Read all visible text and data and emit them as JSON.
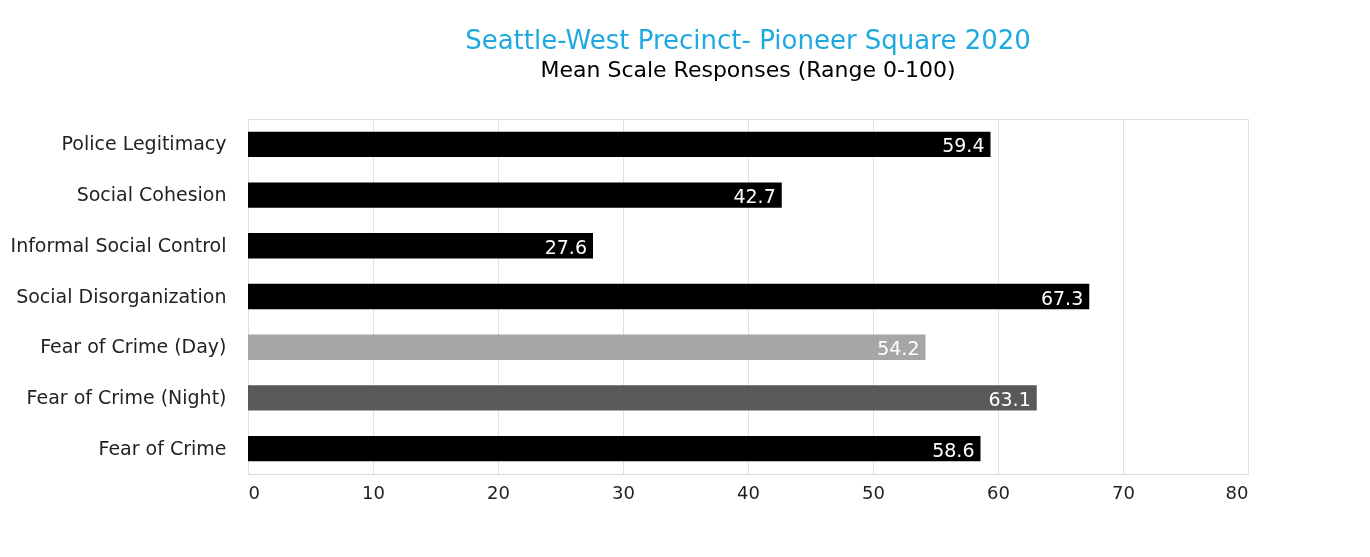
{
  "chart_data": {
    "type": "bar",
    "orientation": "horizontal",
    "title": "Seattle-West Precinct- Pioneer Square 2020",
    "subtitle": "Mean Scale Responses (Range 0-100)",
    "categories": [
      "Police Legitimacy",
      "Social Cohesion",
      "Informal Social Control",
      "Social Disorganization",
      "Fear of Crime (Day)",
      "Fear of Crime (Night)",
      "Fear of Crime"
    ],
    "values": [
      59.4,
      42.7,
      27.6,
      67.3,
      54.2,
      63.1,
      58.6
    ],
    "colors": [
      "#000000",
      "#000000",
      "#000000",
      "#000000",
      "#a6a6a6",
      "#595959",
      "#000000"
    ],
    "xlim": [
      0,
      80
    ],
    "xticks": [
      0,
      10,
      20,
      30,
      40,
      50,
      60,
      70,
      80
    ],
    "grid": "x",
    "data_labels": true
  }
}
